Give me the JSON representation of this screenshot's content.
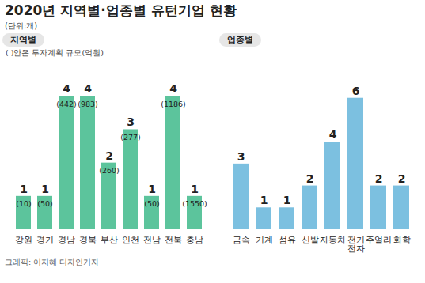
{
  "title": "2020년 지역별·업종별 유턴기업 현황",
  "subtitle": "(단위:개)",
  "caption": "그래픽: 이지혜 디자인기자",
  "chart_data": [
    {
      "type": "bar",
      "title": "지역별",
      "note": "( )안은 투자계획 규모(억원)",
      "categories": [
        "강원",
        "경기",
        "경남",
        "경북",
        "부산",
        "인천",
        "전남",
        "전북",
        "충남"
      ],
      "values": [
        1,
        1,
        4,
        4,
        2,
        3,
        1,
        4,
        1
      ],
      "investment": [
        10,
        50,
        442,
        983,
        260,
        277,
        50,
        1186,
        1550
      ],
      "investment_labels": [
        "(10)",
        "(50)",
        "(442)",
        "(983)",
        "(260)",
        "(277)",
        "(50)",
        "(1186)",
        "(1550)"
      ],
      "color": "#5cc49c",
      "ylim": [
        0,
        4.6
      ],
      "data_labels": true,
      "tick_labels": "x",
      "grid": false
    },
    {
      "type": "bar",
      "title": "업종별",
      "categories": [
        "금속",
        "기계",
        "섬유",
        "신발",
        "자동차",
        "전기전자",
        "주얼리",
        "화학"
      ],
      "values": [
        3,
        1,
        1,
        2,
        4,
        6,
        2,
        2
      ],
      "color": "#7cc0e0",
      "ylim": [
        0,
        7
      ],
      "data_labels": true,
      "tick_labels": "x",
      "grid": false
    }
  ]
}
